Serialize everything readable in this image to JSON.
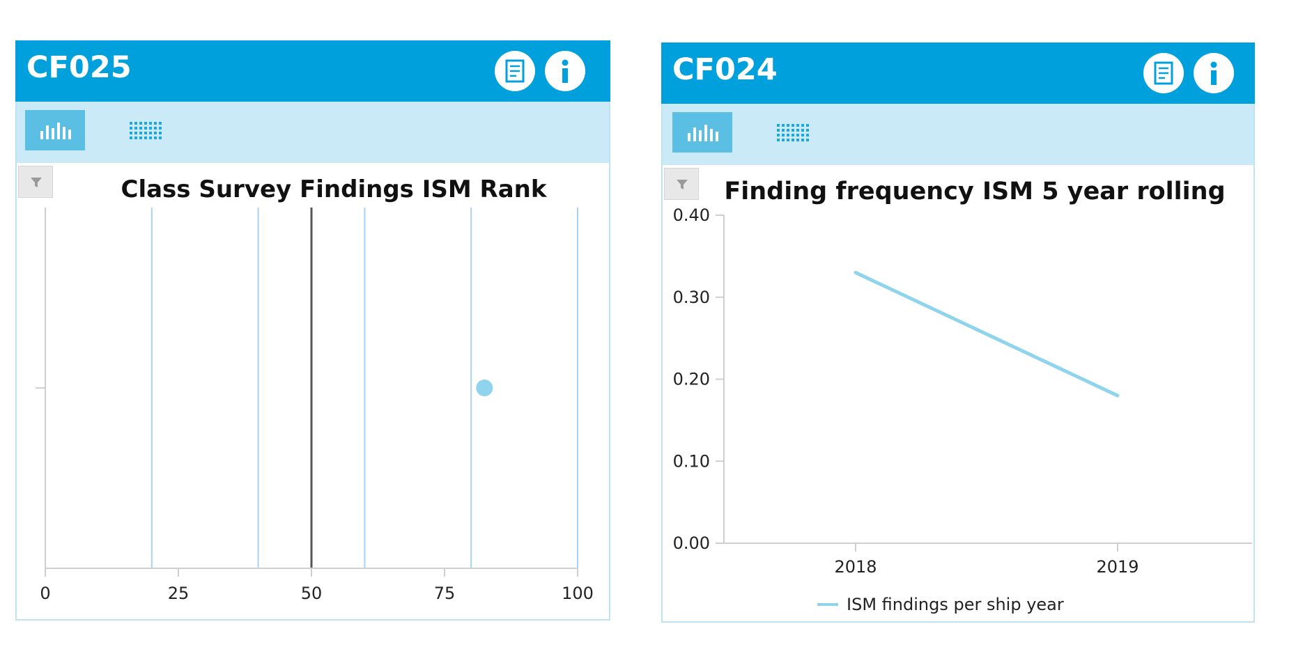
{
  "panels": [
    {
      "code": "CF025",
      "title": "Class Survey Findings ISM Rank",
      "toolbar": {
        "chart_view_icon": "bar-chart-icon",
        "table_view_icon": "grid-table-icon",
        "active": "chart"
      },
      "header_icons": [
        "report-icon",
        "info-icon"
      ],
      "filter_icon": "filter-icon"
    },
    {
      "code": "CF024",
      "title": "Finding frequency ISM 5 year rolling",
      "toolbar": {
        "chart_view_icon": "bar-chart-icon",
        "table_view_icon": "grid-table-icon",
        "active": "chart"
      },
      "header_icons": [
        "report-icon",
        "info-icon"
      ],
      "filter_icon": "filter-icon",
      "legend": "ISM findings per ship year"
    }
  ],
  "colors": {
    "header": "#00a0dc",
    "toolbar": "#cbeaf7",
    "active_button": "#5bbfe3",
    "series": "#8fd4ec",
    "band_lines": "#a9d2f2",
    "median_line": "#555555"
  },
  "chart_data": [
    {
      "type": "scatter",
      "title": "Class Survey Findings ISM Rank",
      "xlim": [
        0,
        100
      ],
      "xticks": [
        "0",
        "25",
        "50",
        "75",
        "100"
      ],
      "reference_lines": [
        20,
        40,
        50,
        60,
        80,
        100
      ],
      "median": 50,
      "points": [
        {
          "x": 82.5
        }
      ],
      "grid": false,
      "legend": "none"
    },
    {
      "type": "line",
      "title": "Finding frequency ISM 5 year rolling",
      "categories": [
        "2018",
        "2019"
      ],
      "series": [
        {
          "name": "ISM findings per ship year",
          "values": [
            0.33,
            0.18
          ]
        }
      ],
      "ylim": [
        0,
        0.4
      ],
      "yticks": [
        "0.00",
        "0.10",
        "0.20",
        "0.30",
        "0.40"
      ],
      "grid": false,
      "legend": "bottom"
    }
  ]
}
